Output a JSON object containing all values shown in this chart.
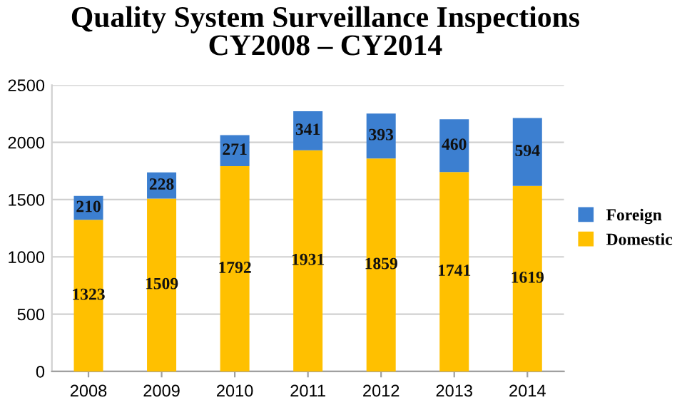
{
  "chart_data": {
    "type": "bar",
    "stacked": true,
    "title": "Quality System Surveillance Inspections\nCY2008 – CY2014",
    "categories": [
      "2008",
      "2009",
      "2010",
      "2011",
      "2012",
      "2013",
      "2014"
    ],
    "series": [
      {
        "name": "Domestic",
        "color": "#ffc000",
        "values": [
          1323,
          1509,
          1792,
          1931,
          1859,
          1741,
          1619
        ]
      },
      {
        "name": "Foreign",
        "color": "#3c7fd0",
        "values": [
          210,
          228,
          271,
          341,
          393,
          460,
          594
        ]
      }
    ],
    "ylim": [
      0,
      2500
    ],
    "yticks": [
      0,
      500,
      1000,
      1500,
      2000,
      2500
    ],
    "grid": "y",
    "legend": "right",
    "data_labels": true
  }
}
